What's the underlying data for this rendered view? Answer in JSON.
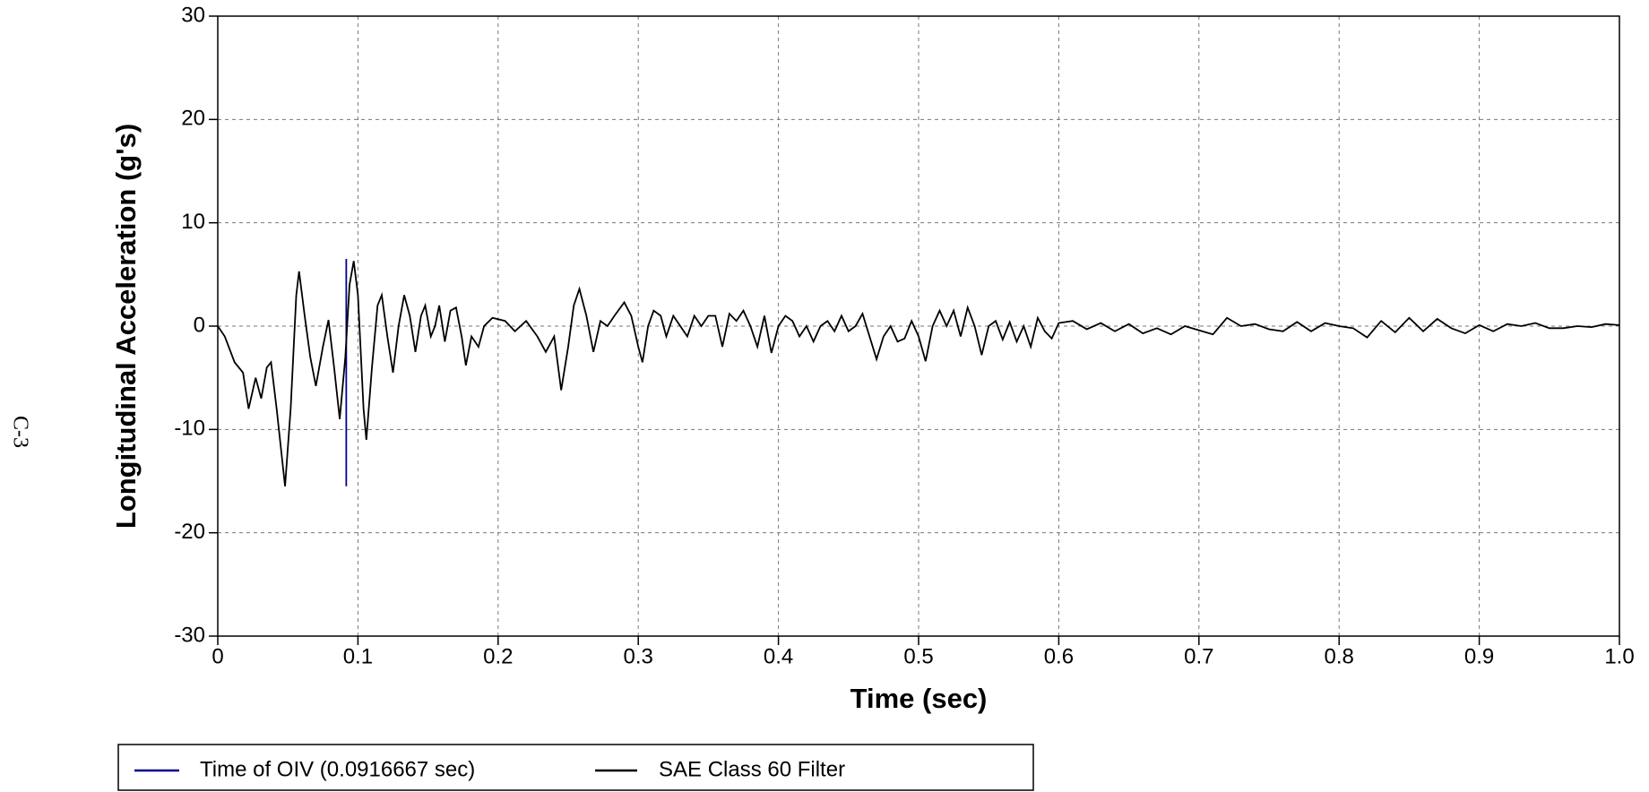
{
  "page_number": "C-3",
  "chart_data": {
    "type": "line",
    "xlabel": "Time (sec)",
    "ylabel": "Longitudinal Acceleration (g's)",
    "xlim": [
      0,
      1
    ],
    "ylim": [
      -30,
      30
    ],
    "xticks": [
      0,
      0.1,
      0.2,
      0.3,
      0.4,
      0.5,
      0.6,
      0.7,
      0.8,
      0.9,
      {
        "value": 1,
        "label": "1.0"
      }
    ],
    "yticks": [
      -30,
      -20,
      -10,
      0,
      10,
      20,
      30
    ],
    "grid": true,
    "legend": "bottom",
    "series": [
      {
        "name": "Time of OIV (0.0916667 sec)",
        "color": "#00008b",
        "x": [
          0.0916667,
          0.0916667
        ],
        "values": [
          -15.5,
          6.5
        ]
      },
      {
        "name": "SAE Class 60 Filter",
        "color": "#000000",
        "x": [
          0,
          0.005,
          0.012,
          0.018,
          0.022,
          0.027,
          0.031,
          0.035,
          0.038,
          0.042,
          0.048,
          0.052,
          0.056,
          0.058,
          0.062,
          0.066,
          0.07,
          0.075,
          0.079,
          0.083,
          0.087,
          0.091,
          0.094,
          0.097,
          0.1,
          0.104,
          0.106,
          0.11,
          0.114,
          0.117,
          0.121,
          0.125,
          0.129,
          0.133,
          0.137,
          0.141,
          0.145,
          0.148,
          0.152,
          0.155,
          0.158,
          0.162,
          0.166,
          0.17,
          0.174,
          0.177,
          0.181,
          0.186,
          0.19,
          0.196,
          0.205,
          0.212,
          0.22,
          0.228,
          0.234,
          0.24,
          0.245,
          0.25,
          0.254,
          0.258,
          0.263,
          0.268,
          0.273,
          0.278,
          0.283,
          0.29,
          0.295,
          0.3,
          0.303,
          0.307,
          0.311,
          0.316,
          0.32,
          0.325,
          0.33,
          0.335,
          0.34,
          0.345,
          0.35,
          0.355,
          0.36,
          0.365,
          0.37,
          0.375,
          0.38,
          0.385,
          0.39,
          0.395,
          0.4,
          0.405,
          0.41,
          0.415,
          0.42,
          0.425,
          0.43,
          0.435,
          0.44,
          0.445,
          0.45,
          0.455,
          0.46,
          0.465,
          0.47,
          0.475,
          0.48,
          0.485,
          0.49,
          0.495,
          0.5,
          0.505,
          0.51,
          0.515,
          0.52,
          0.525,
          0.53,
          0.535,
          0.54,
          0.545,
          0.55,
          0.555,
          0.56,
          0.565,
          0.57,
          0.575,
          0.58,
          0.585,
          0.59,
          0.595,
          0.6,
          0.61,
          0.62,
          0.63,
          0.64,
          0.65,
          0.66,
          0.67,
          0.68,
          0.69,
          0.7,
          0.71,
          0.72,
          0.73,
          0.74,
          0.75,
          0.76,
          0.77,
          0.78,
          0.79,
          0.8,
          0.81,
          0.82,
          0.83,
          0.84,
          0.85,
          0.86,
          0.87,
          0.88,
          0.89,
          0.9,
          0.91,
          0.92,
          0.93,
          0.94,
          0.95,
          0.96,
          0.97,
          0.98,
          0.99,
          1.0
        ],
        "values": [
          0,
          -1,
          -3.5,
          -4.5,
          -8,
          -5,
          -7,
          -4,
          -3.5,
          -8,
          -15.5,
          -8,
          3,
          5.3,
          1,
          -3,
          -5.8,
          -2,
          0.6,
          -4,
          -9,
          -3,
          4,
          6.3,
          3,
          -8,
          -11,
          -4,
          2,
          3,
          -1,
          -4.5,
          0,
          3,
          1,
          -2.5,
          1,
          2,
          -1,
          0,
          2,
          -1.5,
          1.5,
          1.8,
          -1,
          -3.8,
          -1,
          -2,
          0,
          0.8,
          0.5,
          -0.5,
          0.5,
          -1,
          -2.5,
          -1,
          -6.2,
          -2,
          2,
          3.6,
          1,
          -2.5,
          0.5,
          0,
          1,
          2.3,
          1,
          -2,
          -3.5,
          0,
          1.5,
          1,
          -1,
          1,
          0,
          -1,
          1,
          0,
          1,
          1,
          -2,
          1.2,
          0.5,
          1.5,
          0,
          -2,
          1,
          -2.6,
          0,
          1,
          0.5,
          -1,
          0,
          -1.5,
          0,
          0.5,
          -0.5,
          1,
          -0.5,
          0,
          1.2,
          -1,
          -3.2,
          -1,
          0,
          -1.5,
          -1.2,
          0.5,
          -1,
          -3.4,
          0,
          1.5,
          0,
          1.5,
          -1,
          1.8,
          0,
          -2.8,
          0,
          0.5,
          -1.3,
          0.4,
          -1.5,
          0,
          -2,
          0.8,
          -0.5,
          -1.2,
          0.3,
          0.5,
          -0.3,
          0.3,
          -0.5,
          0.2,
          -0.7,
          -0.2,
          -0.8,
          0,
          -0.4,
          -0.8,
          0.8,
          0,
          0.2,
          -0.3,
          -0.5,
          0.4,
          -0.5,
          0.3,
          0,
          -0.2,
          -1.1,
          0.5,
          -0.6,
          0.8,
          -0.5,
          0.7,
          -0.2,
          -0.7,
          0.1,
          -0.5,
          0.2,
          0,
          0.3,
          -0.2,
          -0.2,
          0,
          -0.1,
          0.2,
          0.1
        ]
      }
    ]
  }
}
